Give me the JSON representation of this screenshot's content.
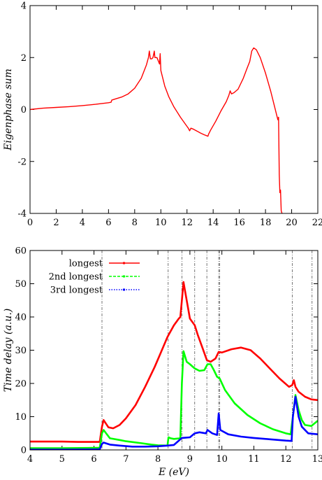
{
  "chart_data": [
    {
      "type": "line",
      "ylabel": "Eigenphase sum",
      "xlabel": "",
      "xlim": [
        0,
        22
      ],
      "ylim": [
        -4,
        4
      ],
      "xticks": [
        0,
        2,
        4,
        6,
        8,
        10,
        12,
        14,
        16,
        18,
        20,
        22
      ],
      "yticks": [
        -4,
        -2,
        0,
        2,
        4
      ],
      "grid": false,
      "series": [
        {
          "color": "#ff0000",
          "points": [
            [
              0,
              0
            ],
            [
              1,
              0.05
            ],
            [
              2,
              0.08
            ],
            [
              3,
              0.11
            ],
            [
              4,
              0.15
            ],
            [
              5,
              0.2
            ],
            [
              6,
              0.26
            ],
            [
              6.2,
              0.28
            ],
            [
              6.25,
              0.36
            ],
            [
              6.5,
              0.4
            ],
            [
              7,
              0.48
            ],
            [
              7.5,
              0.6
            ],
            [
              8,
              0.82
            ],
            [
              8.5,
              1.2
            ],
            [
              8.9,
              1.72
            ],
            [
              9.05,
              2.0
            ],
            [
              9.12,
              2.25
            ],
            [
              9.2,
              1.95
            ],
            [
              9.3,
              1.95
            ],
            [
              9.4,
              2.0
            ],
            [
              9.5,
              2.25
            ],
            [
              9.55,
              2.0
            ],
            [
              9.7,
              2.0
            ],
            [
              9.8,
              1.88
            ],
            [
              9.9,
              1.75
            ],
            [
              9.95,
              2.15
            ],
            [
              10.0,
              1.5
            ],
            [
              10.3,
              0.9
            ],
            [
              10.6,
              0.5
            ],
            [
              11,
              0.1
            ],
            [
              11.5,
              -0.3
            ],
            [
              12,
              -0.65
            ],
            [
              12.1,
              -0.72
            ],
            [
              12.2,
              -0.82
            ],
            [
              12.3,
              -0.72
            ],
            [
              12.5,
              -0.76
            ],
            [
              12.8,
              -0.84
            ],
            [
              13,
              -0.9
            ],
            [
              13.3,
              -0.97
            ],
            [
              13.6,
              -1.03
            ],
            [
              13.65,
              -0.95
            ],
            [
              13.8,
              -0.8
            ],
            [
              14.2,
              -0.45
            ],
            [
              14.6,
              -0.05
            ],
            [
              15.0,
              0.3
            ],
            [
              15.2,
              0.55
            ],
            [
              15.3,
              0.72
            ],
            [
              15.4,
              0.6
            ],
            [
              15.6,
              0.65
            ],
            [
              15.9,
              0.78
            ],
            [
              16.3,
              1.2
            ],
            [
              16.6,
              1.6
            ],
            [
              16.8,
              1.85
            ],
            [
              16.95,
              2.25
            ],
            [
              17.1,
              2.37
            ],
            [
              17.3,
              2.3
            ],
            [
              17.6,
              2.0
            ],
            [
              18.0,
              1.4
            ],
            [
              18.4,
              0.7
            ],
            [
              18.7,
              0.1
            ],
            [
              18.9,
              -0.3
            ],
            [
              18.95,
              -0.4
            ],
            [
              19.0,
              -0.3
            ],
            [
              19.05,
              -2.5
            ],
            [
              19.1,
              -3.2
            ],
            [
              19.15,
              -3.1
            ],
            [
              19.2,
              -3.9
            ],
            [
              19.3,
              -4.05
            ]
          ]
        }
      ]
    },
    {
      "type": "line",
      "xlabel": "E (eV)",
      "ylabel": "Time delay (a.u.)",
      "xlim": [
        4,
        13
      ],
      "ylim": [
        0,
        60
      ],
      "xticks": [
        4,
        5,
        6,
        7,
        8,
        9,
        10,
        11,
        12,
        13
      ],
      "yticks": [
        0,
        10,
        20,
        30,
        40,
        50,
        60
      ],
      "legend_position": "top-left",
      "vlines": [
        6.25,
        8.32,
        8.75,
        9.15,
        9.53,
        9.9,
        9.93,
        12.2,
        12.82
      ],
      "series": [
        {
          "name": "longest",
          "color": "#ff0000",
          "points": [
            [
              4,
              2.5
            ],
            [
              5,
              2.5
            ],
            [
              5.5,
              2.4
            ],
            [
              6,
              2.4
            ],
            [
              6.18,
              2.4
            ],
            [
              6.25,
              7
            ],
            [
              6.3,
              9
            ],
            [
              6.45,
              6.8
            ],
            [
              6.6,
              6.5
            ],
            [
              6.8,
              7.5
            ],
            [
              7,
              9.5
            ],
            [
              7.3,
              13.5
            ],
            [
              7.6,
              19
            ],
            [
              7.9,
              25
            ],
            [
              8.1,
              29.5
            ],
            [
              8.3,
              34
            ],
            [
              8.5,
              37.5
            ],
            [
              8.65,
              39.5
            ],
            [
              8.7,
              40
            ],
            [
              8.75,
              45
            ],
            [
              8.8,
              50.5
            ],
            [
              8.9,
              45
            ],
            [
              9.0,
              39.5
            ],
            [
              9.15,
              37.5
            ],
            [
              9.25,
              34.5
            ],
            [
              9.4,
              30.5
            ],
            [
              9.53,
              27
            ],
            [
              9.65,
              26.5
            ],
            [
              9.8,
              27.5
            ],
            [
              9.9,
              29.5
            ],
            [
              10,
              29.3
            ],
            [
              10.3,
              30.3
            ],
            [
              10.6,
              30.8
            ],
            [
              10.9,
              30
            ],
            [
              11.2,
              27.5
            ],
            [
              11.5,
              24.5
            ],
            [
              11.8,
              21.5
            ],
            [
              12.1,
              19
            ],
            [
              12.2,
              19.5
            ],
            [
              12.25,
              21
            ],
            [
              12.3,
              19
            ],
            [
              12.4,
              17.5
            ],
            [
              12.6,
              16
            ],
            [
              12.8,
              15.2
            ],
            [
              13,
              15
            ]
          ]
        },
        {
          "name": "2nd longest",
          "color": "#00ff00",
          "points": [
            [
              4,
              0.5
            ],
            [
              5,
              0.5
            ],
            [
              6,
              0.6
            ],
            [
              6.18,
              0.6
            ],
            [
              6.25,
              5
            ],
            [
              6.3,
              6
            ],
            [
              6.5,
              3.5
            ],
            [
              6.8,
              3
            ],
            [
              7,
              2.6
            ],
            [
              7.5,
              2
            ],
            [
              7.8,
              1.6
            ],
            [
              8.0,
              1.4
            ],
            [
              8.3,
              1.3
            ],
            [
              8.33,
              3.8
            ],
            [
              8.4,
              3.5
            ],
            [
              8.5,
              3.3
            ],
            [
              8.7,
              3.5
            ],
            [
              8.75,
              20
            ],
            [
              8.8,
              29.7
            ],
            [
              8.9,
              26.5
            ],
            [
              9.0,
              25.8
            ],
            [
              9.15,
              24.5
            ],
            [
              9.3,
              23.8
            ],
            [
              9.45,
              24
            ],
            [
              9.55,
              25.8
            ],
            [
              9.65,
              25.8
            ],
            [
              9.75,
              24
            ],
            [
              9.85,
              22
            ],
            [
              9.93,
              21.5
            ],
            [
              10.1,
              18
            ],
            [
              10.4,
              14
            ],
            [
              10.8,
              10.5
            ],
            [
              11.2,
              8
            ],
            [
              11.6,
              6.2
            ],
            [
              12.0,
              5
            ],
            [
              12.15,
              4.7
            ],
            [
              12.22,
              10
            ],
            [
              12.3,
              16.5
            ],
            [
              12.4,
              12
            ],
            [
              12.5,
              9
            ],
            [
              12.6,
              7.5
            ],
            [
              12.8,
              7.2
            ],
            [
              13,
              8.8
            ]
          ]
        },
        {
          "name": "3rd longest",
          "color": "#0000ff",
          "points": [
            [
              4,
              0.1
            ],
            [
              5,
              0.1
            ],
            [
              6,
              0.15
            ],
            [
              6.18,
              0.2
            ],
            [
              6.25,
              1.8
            ],
            [
              6.3,
              2.2
            ],
            [
              6.5,
              1.6
            ],
            [
              6.8,
              1.3
            ],
            [
              7.2,
              1.0
            ],
            [
              7.6,
              1.0
            ],
            [
              8.0,
              1.1
            ],
            [
              8.3,
              1.3
            ],
            [
              8.5,
              1.5
            ],
            [
              8.75,
              3.6
            ],
            [
              9.0,
              3.8
            ],
            [
              9.15,
              5
            ],
            [
              9.3,
              5.3
            ],
            [
              9.5,
              5
            ],
            [
              9.55,
              6
            ],
            [
              9.7,
              5
            ],
            [
              9.85,
              4.5
            ],
            [
              9.9,
              11
            ],
            [
              9.95,
              6
            ],
            [
              10.2,
              4.7
            ],
            [
              10.6,
              4
            ],
            [
              11,
              3.6
            ],
            [
              11.5,
              3.2
            ],
            [
              12.0,
              2.8
            ],
            [
              12.18,
              2.7
            ],
            [
              12.22,
              10
            ],
            [
              12.3,
              16
            ],
            [
              12.4,
              10
            ],
            [
              12.5,
              7
            ],
            [
              12.7,
              5
            ],
            [
              13,
              4.7
            ]
          ]
        }
      ]
    }
  ]
}
